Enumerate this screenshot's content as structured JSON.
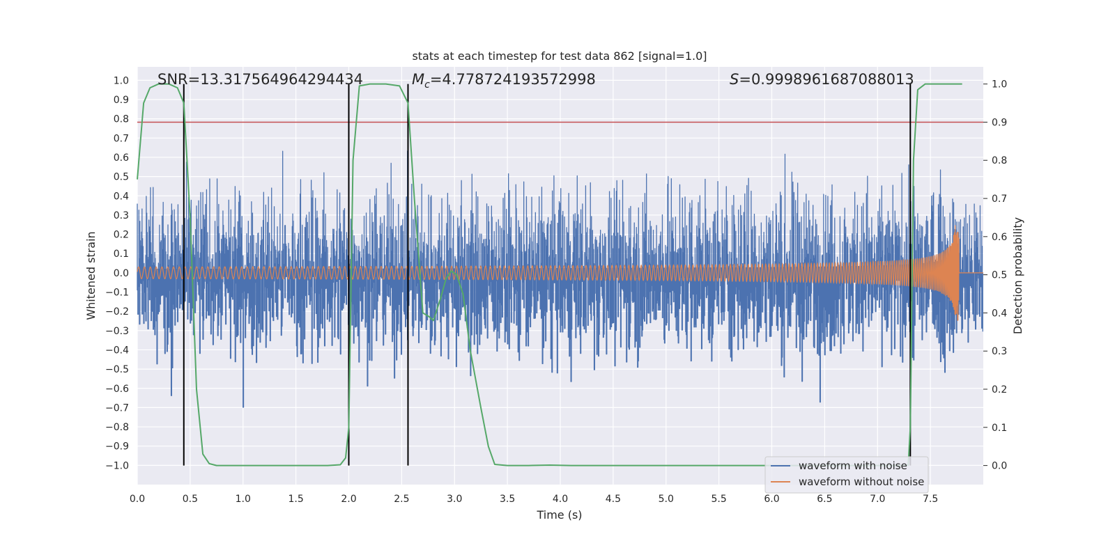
{
  "chart_data": {
    "type": "line",
    "title": "stats at each timestep for test data 862 [signal=1.0]",
    "xlabel": "Time (s)",
    "ylabel": "Whitened strain",
    "ylabel_right": "Detection probability",
    "xlim": [
      0.0,
      8.0
    ],
    "ylim": [
      -1.1,
      1.07
    ],
    "ylim_right": [
      -0.05,
      1.045
    ],
    "xticks": [
      0.0,
      0.5,
      1.0,
      1.5,
      2.0,
      2.5,
      3.0,
      3.5,
      4.0,
      4.5,
      5.0,
      5.5,
      6.0,
      6.5,
      7.0,
      7.5
    ],
    "xtick_labels": [
      "0.0",
      "0.5",
      "1.0",
      "1.5",
      "2.0",
      "2.5",
      "3.0",
      "3.5",
      "4.0",
      "4.5",
      "5.0",
      "5.5",
      "6.0",
      "6.5",
      "7.0",
      "7.5"
    ],
    "yticks": [
      1.0,
      0.9,
      0.8,
      0.7,
      0.6,
      0.5,
      0.4,
      0.3,
      0.2,
      0.1,
      0.0,
      -0.1,
      -0.2,
      -0.3,
      -0.4,
      -0.5,
      -0.6,
      -0.7,
      -0.8,
      -0.9,
      -1.0
    ],
    "ytick_labels": [
      "1.0",
      "0.9",
      "0.8",
      "0.7",
      "0.6",
      "0.5",
      "0.4",
      "0.3",
      "0.2",
      "0.1",
      "0.0",
      "−0.1",
      "−0.2",
      "−0.3",
      "−0.4",
      "−0.5",
      "−0.6",
      "−0.7",
      "−0.8",
      "−0.9",
      "−1.0"
    ],
    "yticks_right": [
      1.0,
      0.9,
      0.8,
      0.7,
      0.6,
      0.5,
      0.4,
      0.3,
      0.2,
      0.1,
      0.0
    ],
    "ytick_labels_right": [
      "1.0",
      "0.9",
      "0.8",
      "0.7",
      "0.6",
      "0.5",
      "0.4",
      "0.3",
      "0.2",
      "0.1",
      "0.0"
    ],
    "annotations": {
      "snr": "SNR=13.317564964294434",
      "mc_symbol": "M",
      "mc_sub": "c",
      "mc_value": "=4.778724193572998",
      "s_symbol": "S",
      "s_value": "=0.9998961687088013"
    },
    "threshold_right": 0.9,
    "vertical_markers_x": [
      0.44,
      2.0,
      2.56,
      7.31
    ],
    "series": [
      {
        "name": "waveform with noise",
        "color": "#4c72b0",
        "axis": "left",
        "noise_amplitude": 0.6,
        "peak_amplitude": 1.0
      },
      {
        "name": "waveform without noise",
        "color": "#dd8452",
        "axis": "left",
        "t_merger": 7.77,
        "t_end": 8.0,
        "start_amplitude": 0.03,
        "merger_amplitude": 0.25,
        "post_merger_value": 0.0
      },
      {
        "name": "detection probability",
        "color": "#55a868",
        "axis": "right",
        "x": [
          0.0,
          0.06,
          0.12,
          0.2,
          0.3,
          0.38,
          0.44,
          0.5,
          0.56,
          0.62,
          0.68,
          0.75,
          0.85,
          1.0,
          1.5,
          1.8,
          1.92,
          1.97,
          2.0,
          2.04,
          2.1,
          2.2,
          2.35,
          2.48,
          2.56,
          2.62,
          2.7,
          2.76,
          2.8,
          2.87,
          2.92,
          2.97,
          3.02,
          3.08,
          3.15,
          3.25,
          3.32,
          3.38,
          3.5,
          3.7,
          3.9,
          4.1,
          4.5,
          5.0,
          5.5,
          6.0,
          6.5,
          7.0,
          7.25,
          7.29,
          7.31,
          7.34,
          7.38,
          7.45,
          7.6,
          7.8
        ],
        "y": [
          0.75,
          0.95,
          0.99,
          1.0,
          1.0,
          0.99,
          0.95,
          0.65,
          0.2,
          0.03,
          0.005,
          0.0,
          0.0,
          0.0,
          0.0,
          0.0,
          0.002,
          0.02,
          0.1,
          0.8,
          0.995,
          1.0,
          1.0,
          0.995,
          0.95,
          0.7,
          0.4,
          0.39,
          0.38,
          0.44,
          0.49,
          0.51,
          0.5,
          0.45,
          0.3,
          0.15,
          0.05,
          0.003,
          0.0,
          0.0,
          0.001,
          0.0,
          0.0,
          0.0,
          0.0,
          0.0,
          0.0,
          0.0,
          0.0,
          0.001,
          0.1,
          0.8,
          0.985,
          1.0,
          1.0,
          1.0
        ]
      }
    ],
    "threshold_color": "#c44e52",
    "marker_color": "#000000",
    "legend": {
      "placement": "lower-right",
      "entries": [
        "waveform with noise",
        "waveform without noise"
      ]
    },
    "grid": true
  }
}
